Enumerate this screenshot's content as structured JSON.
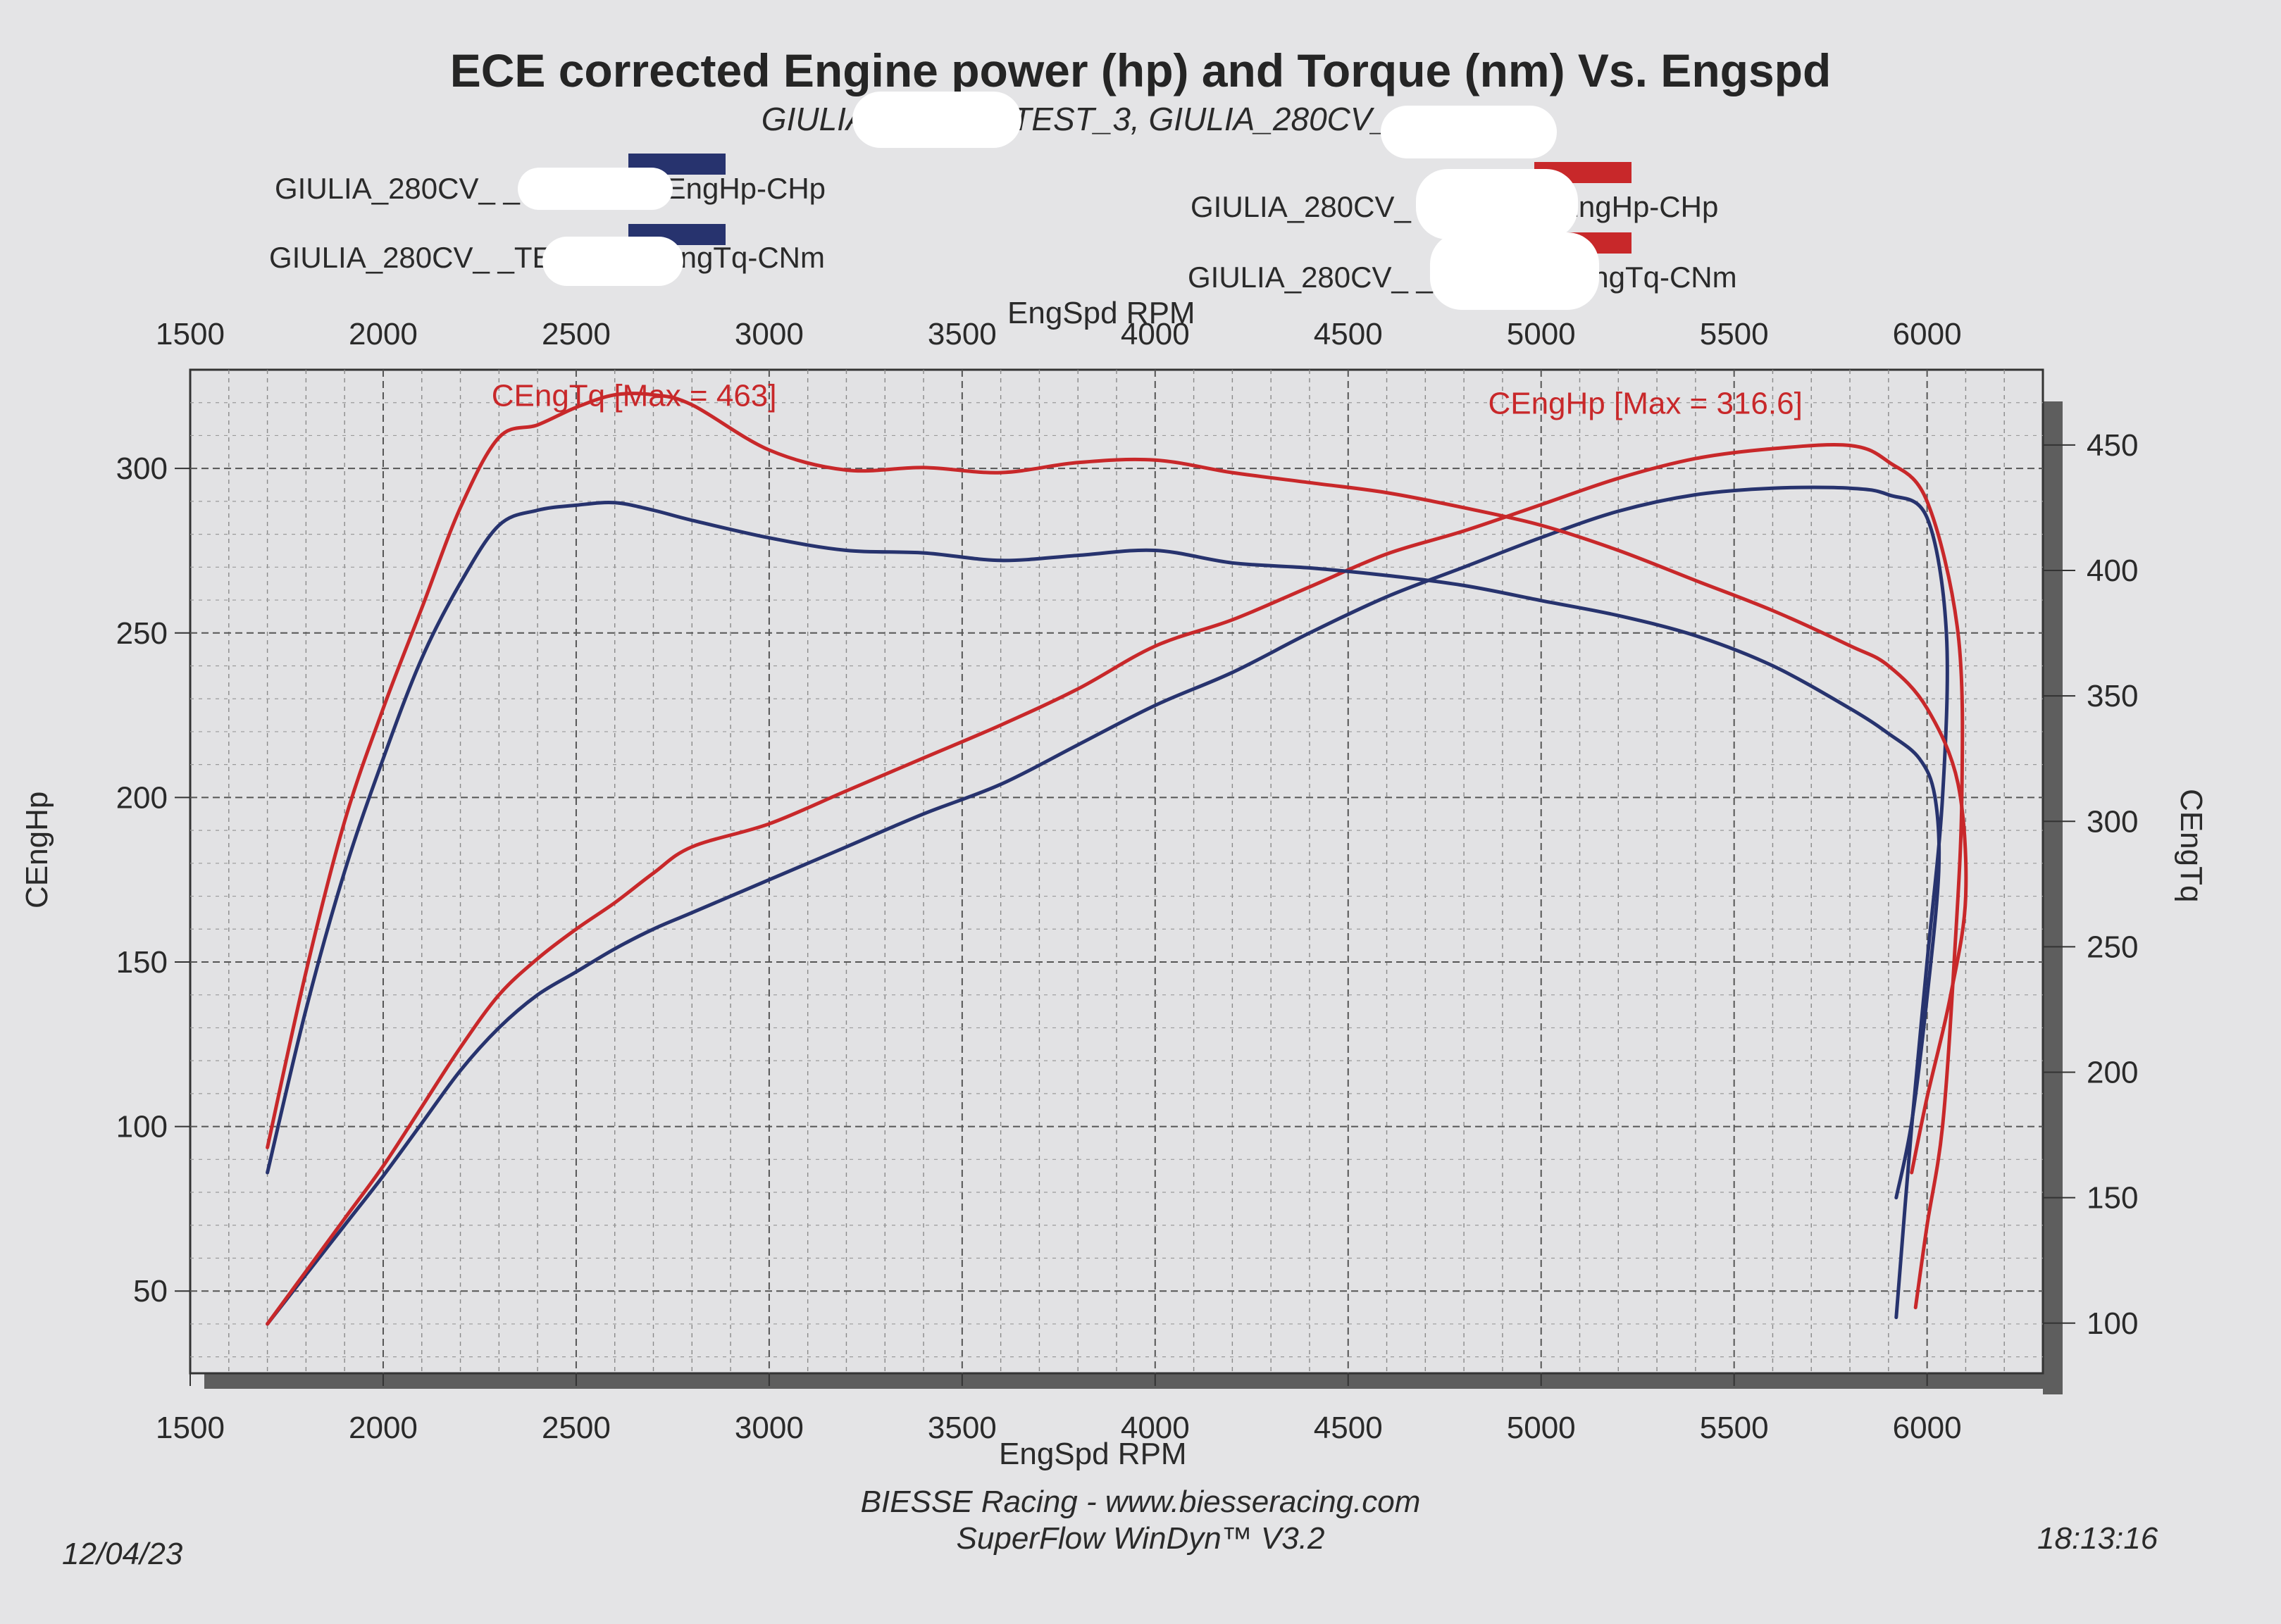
{
  "header": {
    "title": "ECE corrected Engine power (hp) and Torque (nm) Vs. Engspd",
    "subtitle": "GIULIA_280CV_ TEST_3, GIULIA_280CV_ MOD_7,"
  },
  "legend": {
    "entries": [
      {
        "label": "GIULIA_280CV_ _TEST_3: CEngHp-CHp",
        "color": "#27336e"
      },
      {
        "label": "GIULIA_280CV_ MOD_7: CEngHp-CHp",
        "color": "#c8282a"
      },
      {
        "label": "GIULIA_280CV_ _TEST_3: CEngTq-CNm",
        "color": "#27336e"
      },
      {
        "label": "GIULIA_280CV_ _MOD_7: CEngTq-CNm",
        "color": "#c8282a"
      }
    ]
  },
  "chart_data": {
    "type": "line",
    "xlabel": "EngSpd RPM",
    "xlim": [
      1500,
      6300
    ],
    "ylabel_left": "CEngHp",
    "ylim_left": [
      25,
      330
    ],
    "ylabel_right": "CEngTq",
    "ylim_right": [
      80,
      480
    ],
    "x_ticks": [
      1500,
      2000,
      2500,
      3000,
      3500,
      4000,
      4500,
      5000,
      5500,
      6000
    ],
    "x_tick_labels": [
      "1500",
      "2000",
      "2500",
      "3000",
      "3500",
      "4000",
      "4500",
      "5000",
      "5500",
      "6000"
    ],
    "y_left_ticks": [
      50,
      100,
      150,
      200,
      250,
      300
    ],
    "y_left_tick_labels": [
      "50",
      "100",
      "150",
      "200",
      "250",
      "300"
    ],
    "y_right_ticks": [
      100,
      150,
      200,
      250,
      300,
      350,
      400,
      450
    ],
    "y_right_tick_labels": [
      "100",
      "150",
      "200",
      "250",
      "300",
      "350",
      "400",
      "450"
    ],
    "grid": true,
    "annotations": [
      {
        "text": "CEngTq [Max = 463]",
        "x": 2650,
        "y_right": 470,
        "color": "#c8282a"
      },
      {
        "text": "CEngHp [Max = 316.6]",
        "x": 5270,
        "y_right": 467,
        "color": "#c8282a"
      }
    ],
    "series": [
      {
        "name": "GIULIA_280CV_ _TEST_3: CEngHp-CHp",
        "axis": "left",
        "color": "#27336e",
        "x": [
          1700,
          1800,
          1900,
          2000,
          2100,
          2200,
          2300,
          2400,
          2500,
          2600,
          2700,
          2800,
          3000,
          3200,
          3400,
          3600,
          3800,
          4000,
          4200,
          4400,
          4600,
          4800,
          5000,
          5200,
          5400,
          5600,
          5800,
          5900,
          6000,
          6050,
          6040,
          6000,
          5960,
          5920
        ],
        "y": [
          40,
          55,
          70,
          85,
          101,
          117,
          130,
          140,
          147,
          154,
          160,
          165,
          175,
          185,
          195,
          204,
          216,
          228,
          238,
          250,
          261,
          270,
          279,
          287,
          292,
          294,
          294,
          292,
          285,
          250,
          200,
          150,
          100,
          42
        ]
      },
      {
        "name": "GIULIA_280CV_ MOD_7: CEngHp-CHp",
        "axis": "left",
        "color": "#c8282a",
        "x": [
          1700,
          1800,
          1900,
          2000,
          2100,
          2200,
          2300,
          2400,
          2500,
          2600,
          2700,
          2800,
          3000,
          3200,
          3400,
          3600,
          3800,
          4000,
          4200,
          4400,
          4600,
          4800,
          5000,
          5200,
          5400,
          5600,
          5800,
          5900,
          6000,
          6080,
          6090,
          6070,
          6040,
          6000,
          5970
        ],
        "y": [
          40,
          56,
          72,
          88,
          106,
          124,
          140,
          151,
          160,
          168,
          177,
          185,
          192,
          202,
          212,
          222,
          233,
          246,
          254,
          264,
          274,
          281,
          289,
          297,
          303,
          306,
          307,
          302,
          290,
          250,
          200,
          150,
          100,
          70,
          45
        ]
      },
      {
        "name": "GIULIA_280CV_ _TEST_3: CEngTq-CNm",
        "axis": "right",
        "color": "#27336e",
        "x": [
          1700,
          1800,
          1900,
          2000,
          2100,
          2200,
          2300,
          2400,
          2500,
          2600,
          2700,
          2800,
          3000,
          3200,
          3400,
          3600,
          3800,
          4000,
          4200,
          4400,
          4600,
          4800,
          5000,
          5200,
          5400,
          5600,
          5800,
          5900,
          5980,
          6020,
          6030,
          6000,
          5960,
          5920
        ],
        "y": [
          160,
          225,
          280,
          325,
          365,
          395,
          418,
          424,
          426,
          427,
          424,
          420,
          413,
          408,
          407,
          404,
          406,
          408,
          403,
          401,
          398,
          394,
          388,
          382,
          374,
          362,
          345,
          335,
          325,
          310,
          280,
          230,
          180,
          150
        ]
      },
      {
        "name": "GIULIA_280CV_ _MOD_7: CEngTq-CNm",
        "axis": "right",
        "color": "#c8282a",
        "x": [
          1700,
          1800,
          1900,
          2000,
          2100,
          2200,
          2300,
          2400,
          2500,
          2600,
          2700,
          2800,
          3000,
          3200,
          3400,
          3600,
          3800,
          4000,
          4200,
          4400,
          4600,
          4800,
          5000,
          5200,
          5400,
          5600,
          5800,
          5900,
          6000,
          6080,
          6100,
          6060,
          6000,
          5960
        ],
        "y": [
          170,
          240,
          300,
          345,
          385,
          425,
          453,
          458,
          465,
          470,
          470,
          466,
          448,
          440,
          441,
          439,
          443,
          444,
          439,
          435,
          431,
          425,
          418,
          408,
          396,
          384,
          370,
          362,
          345,
          315,
          270,
          230,
          190,
          160
        ]
      }
    ]
  },
  "footer": {
    "line1": "BIESSE Racing - www.biesseracing.com",
    "line2": "SuperFlow WinDyn™ V3.2",
    "date": "12/04/23",
    "time": "18:13:16"
  }
}
